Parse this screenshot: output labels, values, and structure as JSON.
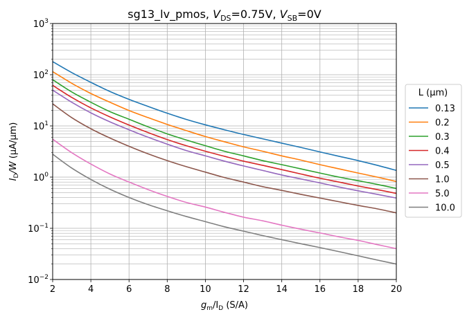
{
  "chart_data": {
    "type": "line",
    "title": {
      "prefix": "sg13_lv_pmos, ",
      "v1": "V",
      "v1_sub": "DS",
      "v1_val": "=0.75V, ",
      "v2": "V",
      "v2_sub": "SB",
      "v2_val": "=0V"
    },
    "xlabel": {
      "g": "g",
      "g_sub": "m",
      "slash": "/I",
      "i_sub": "D",
      "unit": " (S/A)"
    },
    "ylabel": {
      "i": "I",
      "i_sub": "D",
      "w": "/W",
      "unit": " (µA/µm)"
    },
    "xlim": [
      2,
      20
    ],
    "ylim": [
      0.01,
      1000
    ],
    "yscale": "log",
    "grid": true,
    "x_ticks": [
      "2",
      "4",
      "6",
      "8",
      "10",
      "12",
      "14",
      "16",
      "18",
      "20"
    ],
    "y_ticks": [
      {
        "base": "10",
        "exp": "−2"
      },
      {
        "base": "10",
        "exp": "−1"
      },
      {
        "base": "10",
        "exp": "0"
      },
      {
        "base": "10",
        "exp": "1"
      },
      {
        "base": "10",
        "exp": "2"
      },
      {
        "base": "10",
        "exp": "3"
      }
    ],
    "legend": {
      "title": "L (µm)",
      "placement": "right-outside"
    },
    "x": [
      2,
      3,
      4,
      5,
      6,
      7,
      8,
      9,
      10,
      11,
      12,
      13,
      14,
      15,
      16,
      17,
      18,
      19,
      20
    ],
    "series": [
      {
        "name": "0.13",
        "color": "#1f77b4",
        "values": [
          180,
          110,
          71,
          47,
          33,
          24,
          17.7,
          13.4,
          10.5,
          8.4,
          6.8,
          5.6,
          4.6,
          3.8,
          3.1,
          2.55,
          2.1,
          1.7,
          1.35
        ]
      },
      {
        "name": "0.2",
        "color": "#ff7f0e",
        "values": [
          115,
          68,
          43,
          29,
          20,
          14.5,
          10.7,
          8.1,
          6.2,
          4.9,
          3.9,
          3.2,
          2.6,
          2.15,
          1.75,
          1.45,
          1.2,
          1.0,
          0.82
        ]
      },
      {
        "name": "0.3",
        "color": "#2ca02c",
        "values": [
          80,
          46,
          29,
          19,
          13.5,
          9.6,
          7.0,
          5.3,
          4.1,
          3.2,
          2.6,
          2.1,
          1.75,
          1.45,
          1.2,
          1.0,
          0.85,
          0.72,
          0.6
        ]
      },
      {
        "name": "0.4",
        "color": "#d62728",
        "values": [
          62,
          36,
          22.5,
          15,
          10.4,
          7.4,
          5.4,
          4.1,
          3.2,
          2.55,
          2.05,
          1.7,
          1.4,
          1.15,
          0.95,
          0.8,
          0.67,
          0.57,
          0.48
        ]
      },
      {
        "name": "0.5",
        "color": "#9467bd",
        "values": [
          50,
          29,
          18,
          12,
          8.4,
          6.0,
          4.4,
          3.3,
          2.6,
          2.05,
          1.65,
          1.35,
          1.1,
          0.92,
          0.77,
          0.64,
          0.54,
          0.46,
          0.39
        ]
      },
      {
        "name": "1.0",
        "color": "#8c564b",
        "values": [
          27,
          14.5,
          8.8,
          5.8,
          4.0,
          2.85,
          2.1,
          1.6,
          1.25,
          0.98,
          0.8,
          0.65,
          0.55,
          0.46,
          0.39,
          0.33,
          0.28,
          0.24,
          0.2
        ]
      },
      {
        "name": "5.0",
        "color": "#e377c2",
        "values": [
          5.5,
          3.0,
          1.8,
          1.15,
          0.8,
          0.57,
          0.42,
          0.32,
          0.26,
          0.205,
          0.165,
          0.14,
          0.115,
          0.096,
          0.081,
          0.068,
          0.058,
          0.048,
          0.04
        ]
      },
      {
        "name": "10.0",
        "color": "#7f7f7f",
        "values": [
          2.8,
          1.5,
          0.9,
          0.58,
          0.4,
          0.29,
          0.22,
          0.17,
          0.135,
          0.107,
          0.088,
          0.072,
          0.06,
          0.05,
          0.042,
          0.035,
          0.029,
          0.024,
          0.02
        ]
      }
    ]
  }
}
